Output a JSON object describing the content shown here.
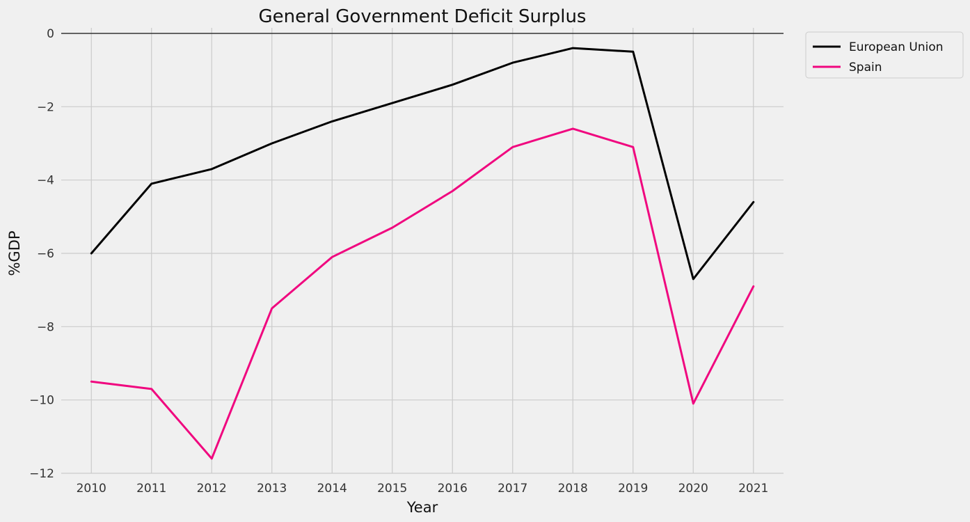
{
  "chart_data": {
    "type": "line",
    "title": "General Government Deficit Surplus",
    "xlabel": "Year",
    "ylabel": "%GDP",
    "x": [
      2010,
      2011,
      2012,
      2013,
      2014,
      2015,
      2016,
      2017,
      2018,
      2019,
      2020,
      2021
    ],
    "x_tick_labels": [
      "2010",
      "2011",
      "2012",
      "2013",
      "2014",
      "2015",
      "2016",
      "2017",
      "2018",
      "2019",
      "2020",
      "2021"
    ],
    "ylim": [
      -12,
      0
    ],
    "y_ticks": [
      0,
      -2,
      -4,
      -6,
      -8,
      -10,
      -12
    ],
    "y_tick_labels": [
      "0",
      "−2",
      "−4",
      "−6",
      "−8",
      "−10",
      "−12"
    ],
    "grid": true,
    "zero_line": true,
    "legend_position": "outside-top-right",
    "series": [
      {
        "name": "European Union",
        "color": "#000000",
        "values": [
          -6.0,
          -4.1,
          -3.7,
          -3.0,
          -2.4,
          -1.9,
          -1.4,
          -0.8,
          -0.4,
          -0.5,
          -6.7,
          -4.6
        ]
      },
      {
        "name": "Spain",
        "color": "#f0077f",
        "values": [
          -9.5,
          -9.7,
          -11.6,
          -7.5,
          -6.1,
          -5.3,
          -4.3,
          -3.1,
          -2.6,
          -3.1,
          -10.1,
          -6.9
        ]
      }
    ]
  }
}
